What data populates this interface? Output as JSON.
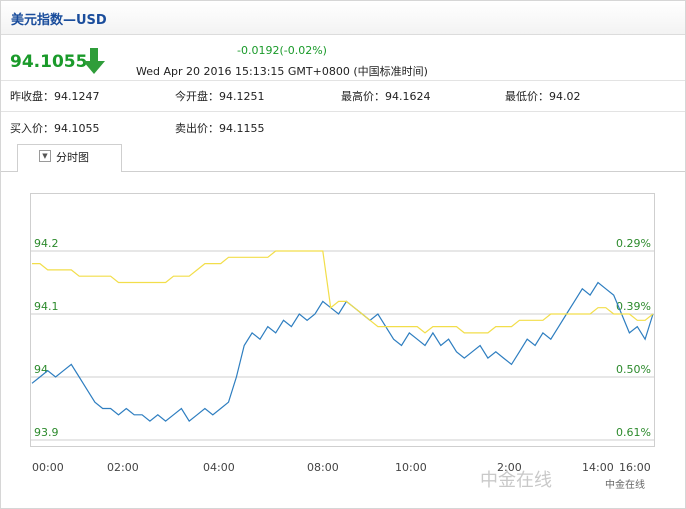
{
  "header": {
    "title": "美元指数—USD"
  },
  "quote": {
    "price": "94.1055",
    "change": "-0.0192(-0.02%)",
    "datetime": "Wed Apr 20 2016 15:13:15 GMT+0800 (中国标准时间)",
    "trend_icon": "down-arrow-icon",
    "fields": {
      "prev_close": "昨收盘：94.1247",
      "open": "今开盘：94.1251",
      "high": "最高价：94.1624",
      "low": "最低价：94.02",
      "bid": "买入价：94.1055",
      "ask": "卖出价：94.1155"
    }
  },
  "tabs": [
    {
      "label": "分时图",
      "icon": "dropdown-icon",
      "selected": true
    }
  ],
  "watermark": {
    "text": "中金在线",
    "small": "中金在线"
  },
  "colors": {
    "up": "#1a9a2a",
    "title": "#1a4d9c",
    "price_line": "#2e7ec0",
    "prev_close_line": "#f2de4a"
  },
  "chart_data": {
    "type": "line",
    "x_tick_labels": [
      "00:00",
      "02:00",
      "04:00",
      "08:00",
      "10:00",
      "2:00",
      "14:00",
      "16:00"
    ],
    "y_ticks_left": [
      "94.2",
      "94.1",
      "94",
      "93.9"
    ],
    "y_ticks_right": [
      "0.29%",
      "0.39%",
      "0.50%",
      "0.61%"
    ],
    "ylim": [
      93.9,
      94.2
    ],
    "series": [
      {
        "color": "#2e7ec0",
        "values": [
          93.99,
          94.0,
          94.01,
          94.0,
          94.01,
          94.02,
          94.0,
          93.98,
          93.96,
          93.95,
          93.95,
          93.94,
          93.95,
          93.94,
          93.94,
          93.93,
          93.94,
          93.93,
          93.94,
          93.95,
          93.93,
          93.94,
          93.95,
          93.94,
          93.95,
          93.96,
          94.0,
          94.05,
          94.07,
          94.06,
          94.08,
          94.07,
          94.09,
          94.08,
          94.1,
          94.09,
          94.1,
          94.12,
          94.11,
          94.1,
          94.12,
          94.11,
          94.1,
          94.09,
          94.1,
          94.08,
          94.06,
          94.05,
          94.07,
          94.06,
          94.05,
          94.07,
          94.05,
          94.06,
          94.04,
          94.03,
          94.04,
          94.05,
          94.03,
          94.04,
          94.03,
          94.02,
          94.04,
          94.06,
          94.05,
          94.07,
          94.06,
          94.08,
          94.1,
          94.12,
          94.14,
          94.13,
          94.15,
          94.14,
          94.13,
          94.1,
          94.07,
          94.08,
          94.06,
          94.1
        ]
      },
      {
        "color": "#f2de4a",
        "values": [
          94.18,
          94.18,
          94.17,
          94.17,
          94.17,
          94.17,
          94.16,
          94.16,
          94.16,
          94.16,
          94.16,
          94.15,
          94.15,
          94.15,
          94.15,
          94.15,
          94.15,
          94.15,
          94.16,
          94.16,
          94.16,
          94.17,
          94.18,
          94.18,
          94.18,
          94.19,
          94.19,
          94.19,
          94.19,
          94.19,
          94.19,
          94.2,
          94.2,
          94.2,
          94.2,
          94.2,
          94.2,
          94.2,
          94.11,
          94.12,
          94.12,
          94.11,
          94.1,
          94.09,
          94.08,
          94.08,
          94.08,
          94.08,
          94.08,
          94.08,
          94.07,
          94.08,
          94.08,
          94.08,
          94.08,
          94.07,
          94.07,
          94.07,
          94.07,
          94.08,
          94.08,
          94.08,
          94.09,
          94.09,
          94.09,
          94.09,
          94.1,
          94.1,
          94.1,
          94.1,
          94.1,
          94.1,
          94.11,
          94.11,
          94.1,
          94.1,
          94.1,
          94.09,
          94.09,
          94.1
        ]
      }
    ]
  }
}
